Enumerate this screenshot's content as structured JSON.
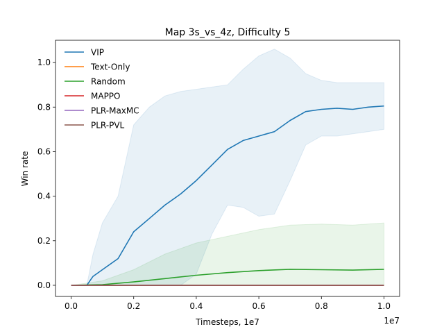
{
  "chart_data": {
    "type": "line",
    "title": "Map 3s_vs_4z, Difficulty 5",
    "xlabel": "Timesteps, 1e7",
    "ylabel": "Win rate",
    "x_offset_label": "1e7",
    "xlim": [
      -0.05,
      1.05
    ],
    "ylim": [
      -0.05,
      1.1
    ],
    "xticks": [
      0.0,
      0.2,
      0.4,
      0.6,
      0.8,
      1.0
    ],
    "xtick_labels": [
      "0.0",
      "0.2",
      "0.4",
      "0.6",
      "0.8",
      "1.0"
    ],
    "yticks": [
      0.0,
      0.2,
      0.4,
      0.6,
      0.8,
      1.0
    ],
    "ytick_labels": [
      "0.0",
      "0.2",
      "0.4",
      "0.6",
      "0.8",
      "1.0"
    ],
    "legend_position": "top-left",
    "grid": false,
    "series": [
      {
        "name": "VIP",
        "color": "#1f77b4",
        "x": [
          0.0,
          0.05,
          0.07,
          0.1,
          0.15,
          0.2,
          0.25,
          0.3,
          0.35,
          0.4,
          0.45,
          0.5,
          0.55,
          0.6,
          0.65,
          0.7,
          0.75,
          0.8,
          0.85,
          0.9,
          0.95,
          1.0
        ],
        "y": [
          0.0,
          0.0,
          0.04,
          0.07,
          0.12,
          0.24,
          0.3,
          0.36,
          0.41,
          0.47,
          0.54,
          0.61,
          0.65,
          0.67,
          0.69,
          0.74,
          0.78,
          0.79,
          0.795,
          0.79,
          0.8,
          0.805
        ],
        "band_upper": [
          0.0,
          0.0,
          0.14,
          0.28,
          0.4,
          0.72,
          0.8,
          0.85,
          0.87,
          0.88,
          0.89,
          0.9,
          0.97,
          1.03,
          1.06,
          1.02,
          0.95,
          0.92,
          0.91,
          0.91,
          0.91,
          0.91
        ],
        "band_lower": [
          0.0,
          0.0,
          0.0,
          0.0,
          0.0,
          0.0,
          0.0,
          0.0,
          0.0,
          0.05,
          0.23,
          0.36,
          0.35,
          0.31,
          0.32,
          0.47,
          0.63,
          0.67,
          0.67,
          0.68,
          0.69,
          0.7
        ]
      },
      {
        "name": "Text-Only",
        "color": "#ff7f0e",
        "x": [
          0.0,
          1.0
        ],
        "y": [
          0.0,
          0.0
        ]
      },
      {
        "name": "Random",
        "color": "#2ca02c",
        "x": [
          0.0,
          0.1,
          0.2,
          0.3,
          0.4,
          0.5,
          0.6,
          0.7,
          0.8,
          0.9,
          1.0
        ],
        "y": [
          0.0,
          0.003,
          0.015,
          0.03,
          0.045,
          0.057,
          0.066,
          0.072,
          0.07,
          0.068,
          0.072
        ],
        "band_upper": [
          0.0,
          0.02,
          0.07,
          0.14,
          0.19,
          0.22,
          0.25,
          0.27,
          0.275,
          0.27,
          0.28
        ],
        "band_lower": [
          0.0,
          0.0,
          0.0,
          0.0,
          0.0,
          0.0,
          0.0,
          0.0,
          0.0,
          0.0,
          0.0
        ]
      },
      {
        "name": "MAPPO",
        "color": "#d62728",
        "x": [
          0.0,
          1.0
        ],
        "y": [
          0.0,
          0.0
        ]
      },
      {
        "name": "PLR-MaxMC",
        "color": "#9467bd",
        "x": [
          0.0,
          1.0
        ],
        "y": [
          0.0,
          0.0
        ]
      },
      {
        "name": "PLR-PVL",
        "color": "#8c564b",
        "x": [
          0.0,
          1.0
        ],
        "y": [
          0.0,
          0.0
        ]
      }
    ]
  }
}
